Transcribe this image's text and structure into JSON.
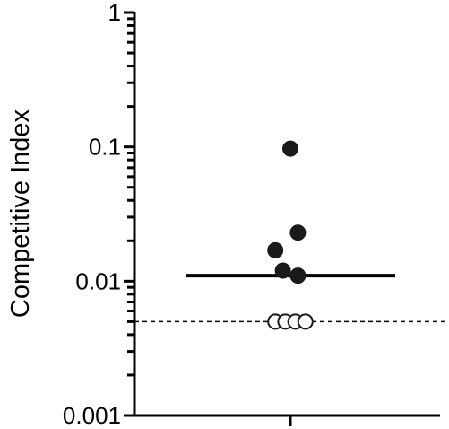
{
  "chart_data": {
    "type": "scatter",
    "title": "",
    "xlabel": "",
    "ylabel": "Competitive Index",
    "yscale": "log",
    "ylim": [
      0.001,
      1
    ],
    "yticks": [
      {
        "value": 1,
        "label": "1"
      },
      {
        "value": 0.1,
        "label": "0.1"
      },
      {
        "value": 0.01,
        "label": "0.01"
      },
      {
        "value": 0.001,
        "label": "0.001"
      }
    ],
    "grid": false,
    "legend": "none",
    "series": [
      {
        "marker": "filled-circle",
        "color": "#1a1a1a",
        "points": [
          {
            "x": 0,
            "y": 0.097
          },
          {
            "x": 0.6,
            "y": 0.023
          },
          {
            "x": -1.2,
            "y": 0.017
          },
          {
            "x": -0.6,
            "y": 0.012
          },
          {
            "x": 0.6,
            "y": 0.011
          }
        ]
      },
      {
        "marker": "open-circle",
        "color": "#1a1a1a",
        "points": [
          {
            "x": -1.2,
            "y": 0.005
          },
          {
            "x": -0.4,
            "y": 0.005
          },
          {
            "x": 0.4,
            "y": 0.005
          },
          {
            "x": 1.2,
            "y": 0.005
          }
        ]
      }
    ],
    "median": 0.011,
    "detection_limit": 0.005
  }
}
